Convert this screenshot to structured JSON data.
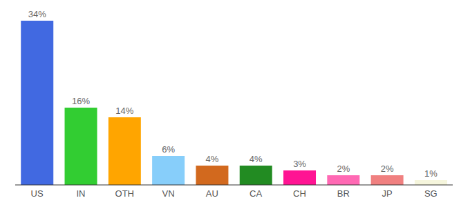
{
  "chart_data": {
    "type": "bar",
    "categories": [
      "US",
      "IN",
      "OTH",
      "VN",
      "AU",
      "CA",
      "CH",
      "BR",
      "JP",
      "SG"
    ],
    "values": [
      34,
      16,
      14,
      6,
      4,
      4,
      3,
      2,
      2,
      1
    ],
    "value_labels": [
      "34%",
      "16%",
      "14%",
      "6%",
      "4%",
      "4%",
      "3%",
      "2%",
      "2%",
      "1%"
    ],
    "colors": [
      "#4169e1",
      "#32cd32",
      "#ffa500",
      "#87cefa",
      "#d2691e",
      "#228b22",
      "#ff1493",
      "#ff69b4",
      "#f08080",
      "#f5f5dc"
    ],
    "data_labels": true,
    "tick_labels": "x",
    "grid": false
  }
}
